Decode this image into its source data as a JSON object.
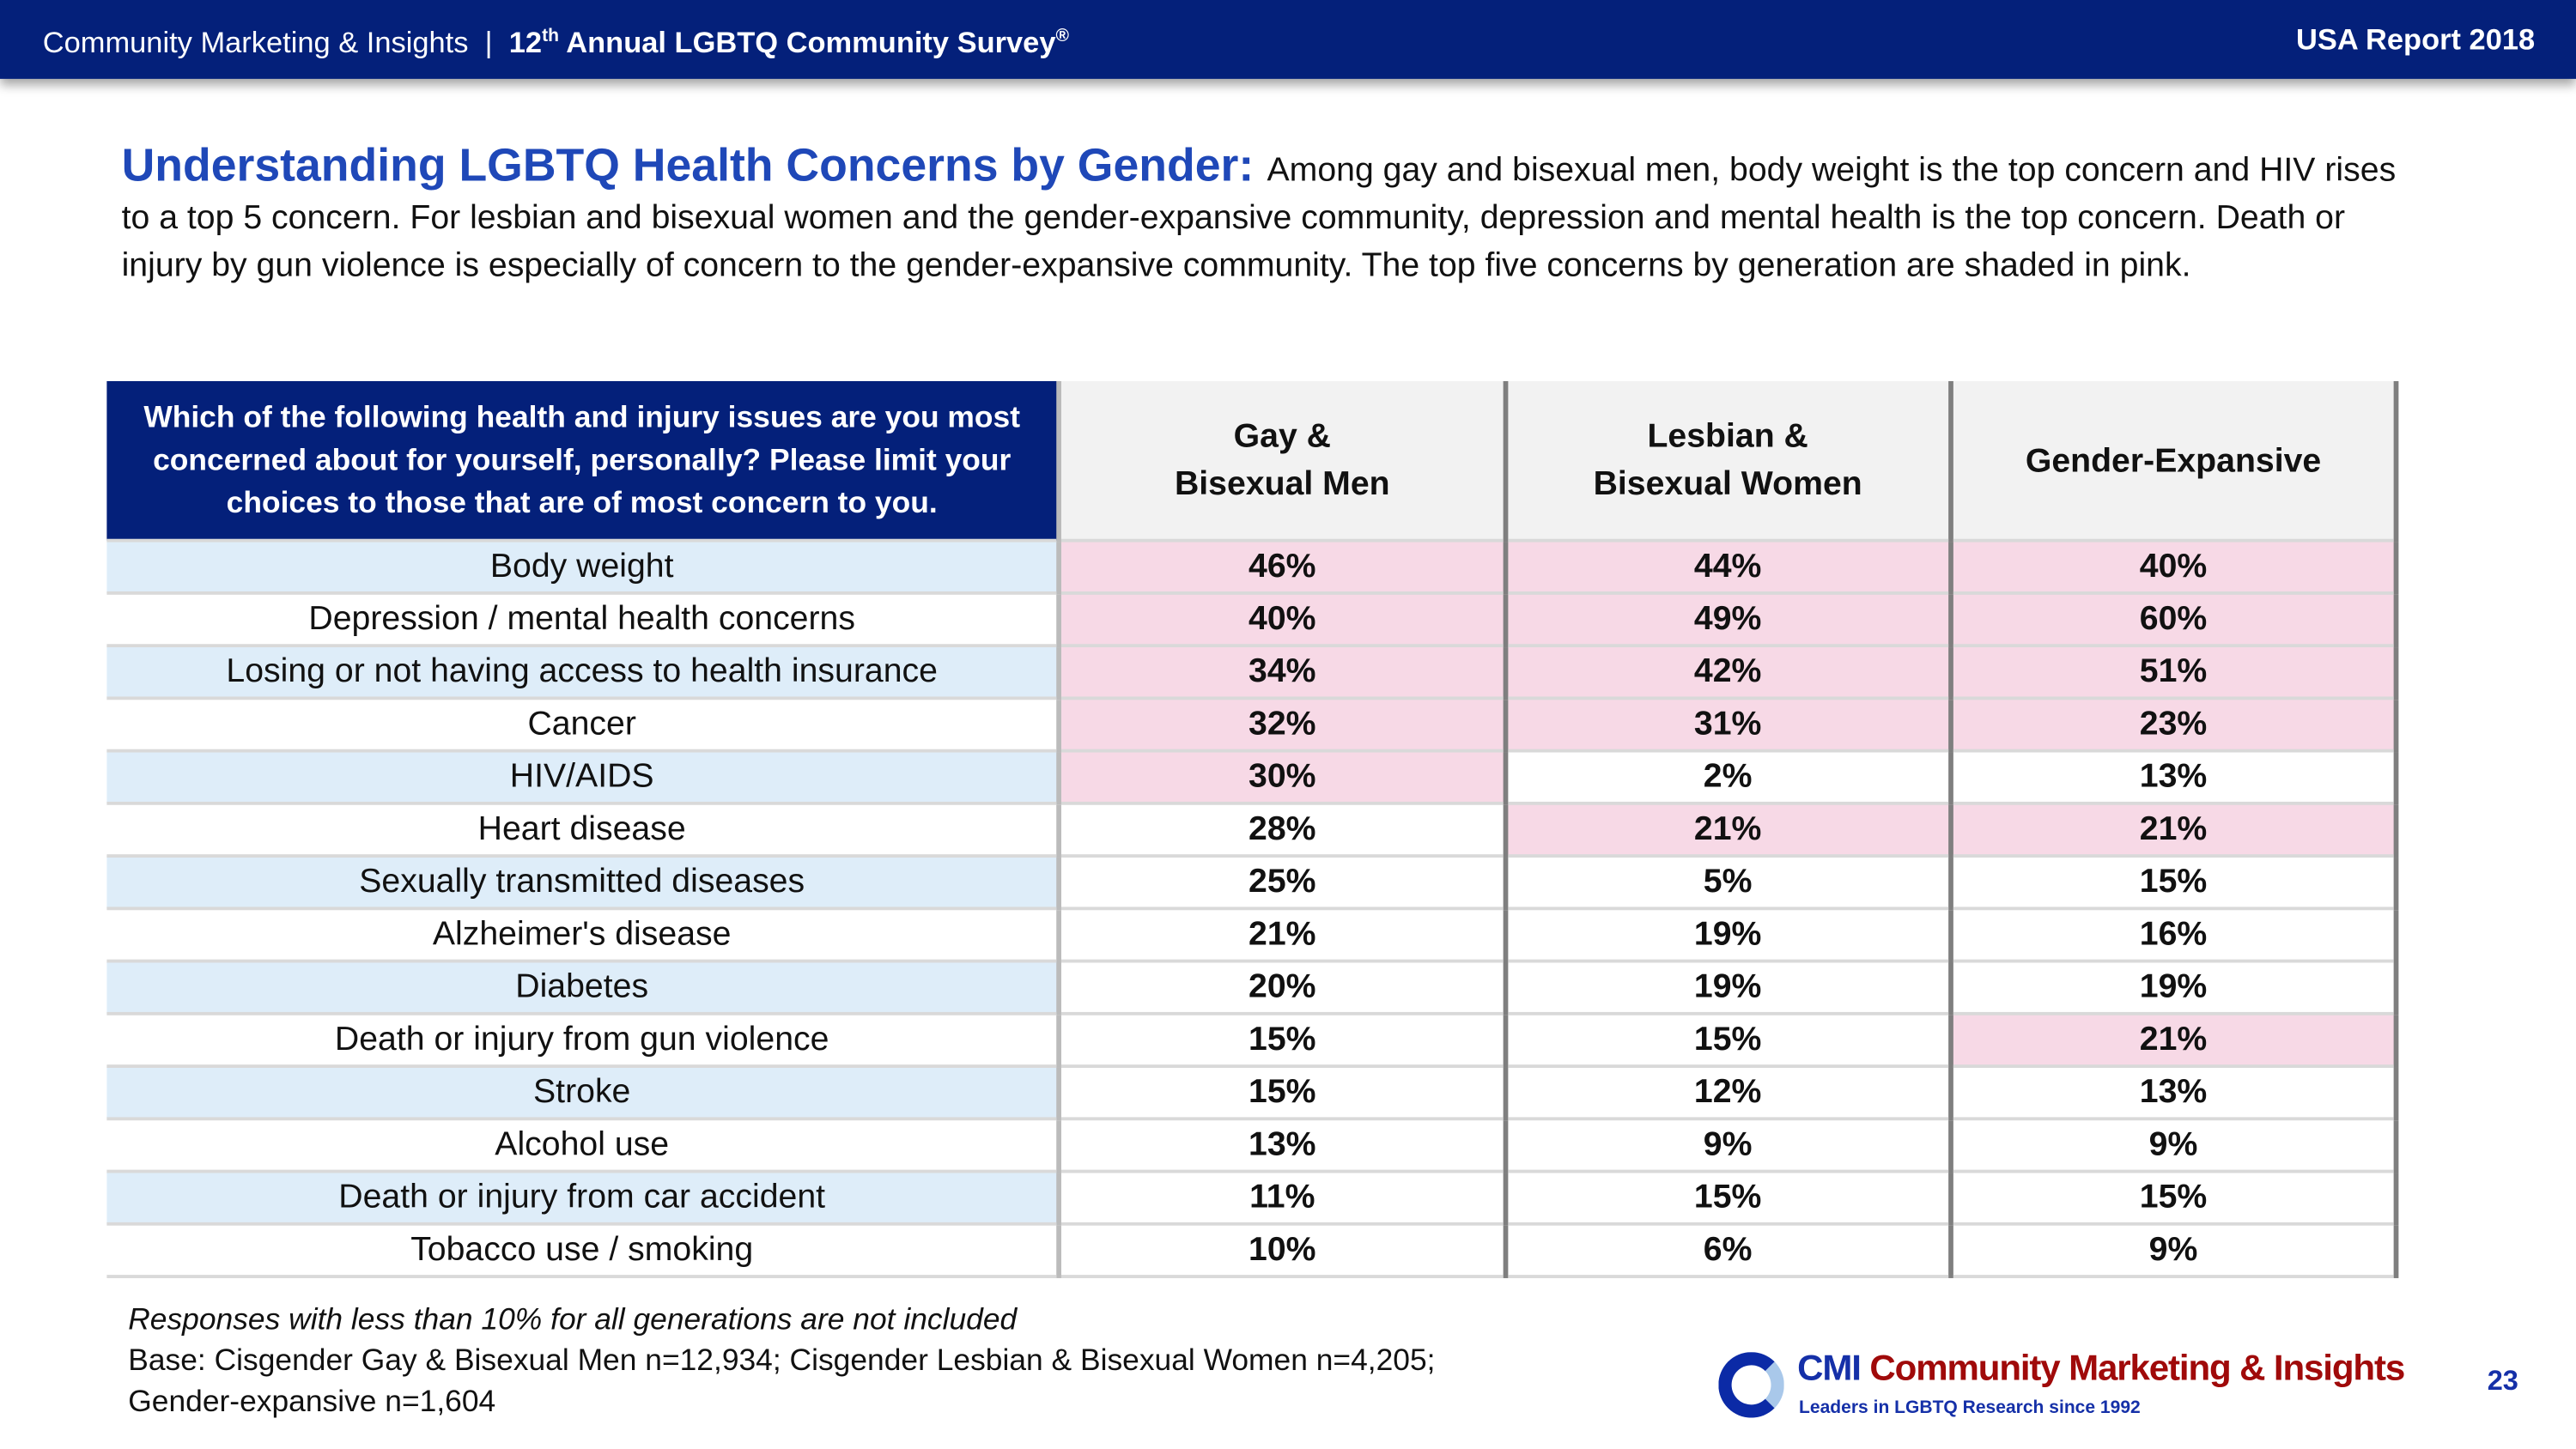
{
  "header": {
    "org": "Community Marketing & Insights",
    "separator": "|",
    "survey_ordinal": "12",
    "survey_sup": "th",
    "survey_title": "Annual LGBTQ Community Survey",
    "survey_reg": "®",
    "report": "USA Report 2018"
  },
  "intro": {
    "title": "Understanding LGBTQ Health Concerns by Gender:",
    "text": "Among gay and bisexual men, body weight is the top concern and HIV rises to a top 5 concern. For lesbian and bisexual women and the gender-expansive community, depression and mental health is the top concern. Death or injury by gun violence is especially of concern to the gender-expansive community. The top five concerns by generation are shaded in pink."
  },
  "table": {
    "question": "Which of the following health and injury issues are you most concerned about for yourself, personally? Please limit your choices to those that are of most concern to you.",
    "columns": [
      [
        "Gay &",
        "Bisexual Men"
      ],
      [
        "Lesbian &",
        "Bisexual Women"
      ],
      [
        "Gender-Expansive"
      ]
    ],
    "shade_color": "#f7d9e6",
    "rows": [
      {
        "label": "Body weight",
        "values": [
          "46%",
          "44%",
          "40%"
        ],
        "top5": [
          true,
          true,
          true
        ]
      },
      {
        "label": "Depression / mental health concerns",
        "values": [
          "40%",
          "49%",
          "60%"
        ],
        "top5": [
          true,
          true,
          true
        ]
      },
      {
        "label": "Losing or not having access to health insurance",
        "values": [
          "34%",
          "42%",
          "51%"
        ],
        "top5": [
          true,
          true,
          true
        ]
      },
      {
        "label": "Cancer",
        "values": [
          "32%",
          "31%",
          "23%"
        ],
        "top5": [
          true,
          true,
          true
        ]
      },
      {
        "label": "HIV/AIDS",
        "values": [
          "30%",
          "2%",
          "13%"
        ],
        "top5": [
          true,
          false,
          false
        ]
      },
      {
        "label": "Heart disease",
        "values": [
          "28%",
          "21%",
          "21%"
        ],
        "top5": [
          false,
          true,
          true
        ]
      },
      {
        "label": "Sexually transmitted diseases",
        "values": [
          "25%",
          "5%",
          "15%"
        ],
        "top5": [
          false,
          false,
          false
        ]
      },
      {
        "label": "Alzheimer's disease",
        "values": [
          "21%",
          "19%",
          "16%"
        ],
        "top5": [
          false,
          false,
          false
        ]
      },
      {
        "label": "Diabetes",
        "values": [
          "20%",
          "19%",
          "19%"
        ],
        "top5": [
          false,
          false,
          false
        ]
      },
      {
        "label": "Death or injury from gun violence",
        "values": [
          "15%",
          "15%",
          "21%"
        ],
        "top5": [
          false,
          false,
          true
        ]
      },
      {
        "label": "Stroke",
        "values": [
          "15%",
          "12%",
          "13%"
        ],
        "top5": [
          false,
          false,
          false
        ]
      },
      {
        "label": "Alcohol use",
        "values": [
          "13%",
          "9%",
          "9%"
        ],
        "top5": [
          false,
          false,
          false
        ]
      },
      {
        "label": "Death or injury from car accident",
        "values": [
          "11%",
          "15%",
          "15%"
        ],
        "top5": [
          false,
          false,
          false
        ]
      },
      {
        "label": "Tobacco use / smoking",
        "values": [
          "10%",
          "6%",
          "9%"
        ],
        "top5": [
          false,
          false,
          false
        ]
      }
    ]
  },
  "footer": {
    "note": "Responses with less than 10% for all generations are not included",
    "base1": "Base: Cisgender Gay & Bisexual Men n=12,934; Cisgender Lesbian & Bisexual Women n=4,205;",
    "base2": "Gender-expansive n=1,604"
  },
  "logo": {
    "abbr": "CMI",
    "name": "Community Marketing & Insights",
    "tagline": "Leaders in LGBTQ Research since 1992"
  },
  "page_number": "23"
}
